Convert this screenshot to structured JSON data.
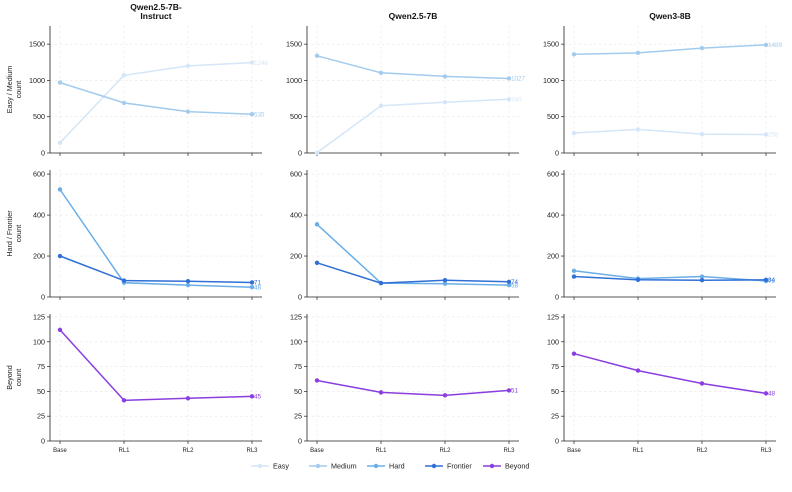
{
  "legend": [
    {
      "name": "Easy",
      "color": "#d4e6f7"
    },
    {
      "name": "Medium",
      "color": "#a3cbee"
    },
    {
      "name": "Hard",
      "color": "#6aaee8"
    },
    {
      "name": "Frontier",
      "color": "#2f6fd6"
    },
    {
      "name": "Beyond",
      "color": "#8a3ee0"
    }
  ],
  "chart_data": {
    "type": "line",
    "grid": true,
    "legend_position": "bottom-center",
    "columns": [
      {
        "title_lines": [
          "Qwen2.5-7B-",
          "Instruct"
        ]
      },
      {
        "title_lines": [
          "Qwen2.5-7B"
        ]
      },
      {
        "title_lines": [
          "Qwen3-8B"
        ]
      }
    ],
    "rows": [
      {
        "ylabel_lines": [
          "Easy / Medium",
          "count"
        ],
        "ylim": [
          0,
          1750
        ],
        "yticks": [
          0,
          500,
          1000,
          1500
        ]
      },
      {
        "ylabel_lines": [
          "Hard / Frontier",
          "count"
        ],
        "ylim": [
          0,
          620
        ],
        "yticks": [
          0,
          200,
          400,
          600
        ]
      },
      {
        "ylabel_lines": [
          "Beyond",
          "count"
        ],
        "ylim": [
          0,
          128
        ],
        "yticks": [
          0,
          25,
          50,
          75,
          100,
          125
        ]
      }
    ],
    "x": [
      "Base",
      "RL1",
      "RL2",
      "RL3"
    ],
    "panels": [
      {
        "row": 0,
        "col": 0,
        "series": [
          {
            "name": "Easy",
            "color": "#d4e6f7",
            "values": [
              140,
              1070,
              1200,
              1246
            ],
            "end_label": "1246"
          },
          {
            "name": "Medium",
            "color": "#a3cbee",
            "values": [
              970,
              690,
              570,
              535
            ],
            "end_label": "535"
          }
        ]
      },
      {
        "row": 0,
        "col": 1,
        "series": [
          {
            "name": "Easy",
            "color": "#d4e6f7",
            "values": [
              5,
              650,
              700,
              740
            ],
            "end_label": "740"
          },
          {
            "name": "Medium",
            "color": "#a3cbee",
            "values": [
              1340,
              1105,
              1055,
              1027
            ],
            "end_label": "1027"
          }
        ]
      },
      {
        "row": 0,
        "col": 2,
        "series": [
          {
            "name": "Easy",
            "color": "#d4e6f7",
            "values": [
              275,
              325,
              260,
              255
            ],
            "end_label": "255"
          },
          {
            "name": "Medium",
            "color": "#a3cbee",
            "values": [
              1360,
              1380,
              1445,
              1489
            ],
            "end_label": "1489"
          }
        ]
      },
      {
        "row": 1,
        "col": 0,
        "series": [
          {
            "name": "Hard",
            "color": "#6aaee8",
            "values": [
              525,
              70,
              58,
              48
            ],
            "end_label": "48"
          },
          {
            "name": "Frontier",
            "color": "#2f6fd6",
            "values": [
              200,
              80,
              77,
              71
            ],
            "end_label": "71"
          }
        ]
      },
      {
        "row": 1,
        "col": 1,
        "series": [
          {
            "name": "Hard",
            "color": "#6aaee8",
            "values": [
              355,
              68,
              65,
              58
            ],
            "end_label": "58"
          },
          {
            "name": "Frontier",
            "color": "#2f6fd6",
            "values": [
              167,
              68,
              82,
              74
            ],
            "end_label": "74"
          }
        ]
      },
      {
        "row": 1,
        "col": 2,
        "series": [
          {
            "name": "Hard",
            "color": "#6aaee8",
            "values": [
              128,
              90,
              100,
              78
            ],
            "end_label": "78"
          },
          {
            "name": "Frontier",
            "color": "#2f6fd6",
            "values": [
              100,
              84,
              82,
              84
            ],
            "end_label": "84"
          }
        ]
      },
      {
        "row": 2,
        "col": 0,
        "series": [
          {
            "name": "Beyond",
            "color": "#8a3ee0",
            "values": [
              112,
              41,
              43,
              45
            ],
            "end_label": "45"
          }
        ]
      },
      {
        "row": 2,
        "col": 1,
        "series": [
          {
            "name": "Beyond",
            "color": "#8a3ee0",
            "values": [
              61,
              49,
              46,
              51
            ],
            "end_label": "51"
          }
        ]
      },
      {
        "row": 2,
        "col": 2,
        "series": [
          {
            "name": "Beyond",
            "color": "#8a3ee0",
            "values": [
              88,
              71,
              58,
              48
            ],
            "end_label": "48"
          }
        ]
      }
    ]
  }
}
